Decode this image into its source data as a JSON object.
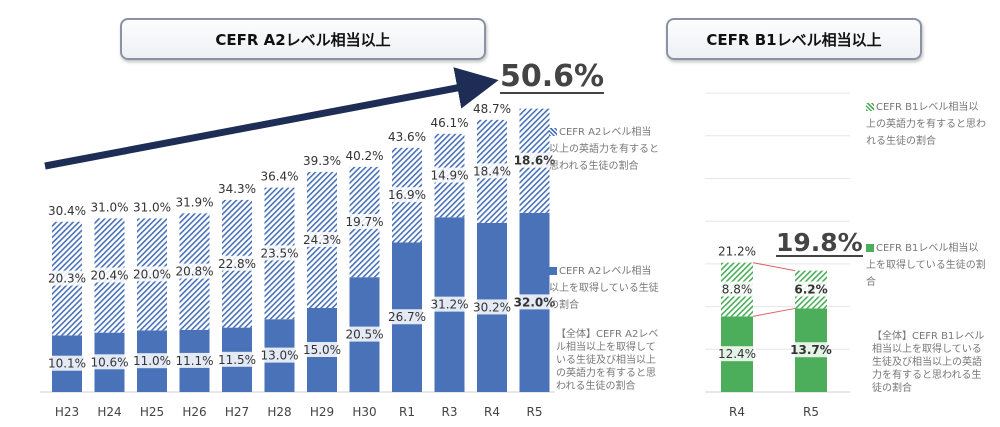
{
  "colors": {
    "a2_solid": "#4a72b8",
    "a2_hatch": "#4a72b8",
    "b1_solid": "#4cae5a",
    "b1_hatch": "#4cae5a",
    "arrow": "#1d2d55",
    "connector": "#e06060"
  },
  "chart_data": [
    {
      "type": "bar",
      "stacked": true,
      "title": "CEFR A2レベル相当以上",
      "categories": [
        "H23",
        "H24",
        "H25",
        "H26",
        "H27",
        "H28",
        "H29",
        "H30",
        "R1",
        "R3",
        "R4",
        "R5"
      ],
      "series": [
        {
          "name": "CEFR A2レベル相当以上を取得している生徒の割合",
          "style": "solid",
          "values": [
            10.1,
            10.6,
            11.0,
            11.1,
            11.5,
            13.0,
            15.0,
            20.5,
            26.7,
            31.2,
            30.2,
            32.0
          ]
        },
        {
          "name": "CEFR A2レベル相当以上の英語力を有すると思われる生徒の割合",
          "style": "hatched",
          "values": [
            20.3,
            20.4,
            20.0,
            20.8,
            22.8,
            23.5,
            24.3,
            19.7,
            16.9,
            14.9,
            18.4,
            18.6
          ]
        }
      ],
      "totals": [
        30.4,
        31.0,
        31.0,
        31.9,
        34.3,
        36.4,
        39.3,
        40.2,
        43.6,
        46.1,
        48.7,
        50.6
      ],
      "total_legend": "【全体】CEFR A2レベル相当以上を取得している生徒及び相当以上の英語力を有すると思われる生徒の割合",
      "highlight": "50.6%",
      "legend_position": "right"
    },
    {
      "type": "bar",
      "stacked": true,
      "title": "CEFR B1レベル相当以上",
      "categories": [
        "R4",
        "R5"
      ],
      "series": [
        {
          "name": "CEFR B1レベル相当以上を取得している生徒の割合",
          "style": "solid",
          "values": [
            12.4,
            13.7
          ]
        },
        {
          "name": "CEFR B1レベル相当以上の英語力を有すると思われる生徒の割合",
          "style": "hatched",
          "values": [
            8.8,
            6.2
          ]
        }
      ],
      "totals": [
        21.2,
        19.8
      ],
      "total_legend": "【全体】CEFR B1レベル相当以上を取得している生徒及び相当以上の英語力を有すると思われる生徒の割合",
      "highlight": "19.8%",
      "legend_position": "right"
    }
  ]
}
